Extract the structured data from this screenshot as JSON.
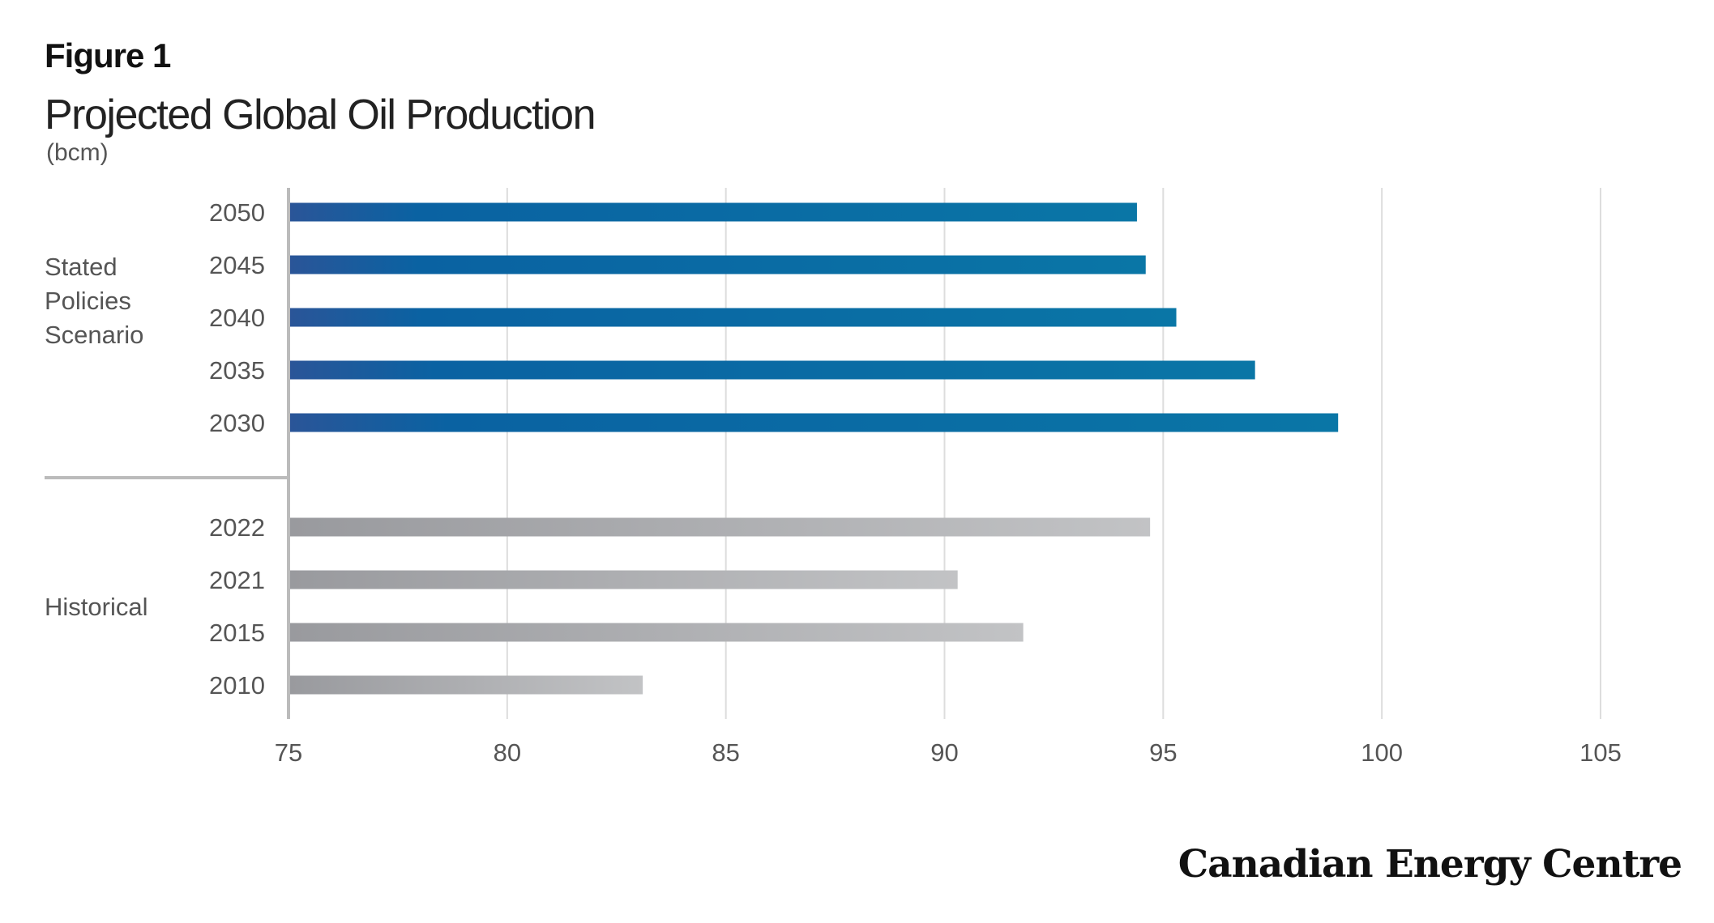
{
  "figure_label": "Figure 1",
  "brand": "Canadian Energy Centre",
  "colors": {
    "scenario_start": "#2a5598",
    "scenario_mid": "#0a62a2",
    "scenario_end": "#0a76a6",
    "historical_start": "#999a9e",
    "historical_end": "#c2c3c5",
    "gridline": "#dddddd",
    "axis": "#bbbbbb",
    "text": "#555555"
  },
  "chart_data": {
    "type": "bar",
    "orientation": "horizontal",
    "title": "Projected Global Oil Production",
    "unit": "(bcm)",
    "xlim": [
      75,
      105
    ],
    "x_ticks": [
      "75",
      "80",
      "85",
      "90",
      "95",
      "100",
      "105"
    ],
    "grid": "vertical",
    "groups": [
      {
        "label": "Stated Policies Scenario",
        "color_key": "scenario",
        "categories": [
          "2050",
          "2045",
          "2040",
          "2035",
          "2030"
        ],
        "values": [
          94.4,
          94.6,
          95.3,
          97.1,
          99.0
        ]
      },
      {
        "label": "Historical",
        "color_key": "historical",
        "categories": [
          "2022",
          "2021",
          "2015",
          "2010"
        ],
        "values": [
          94.7,
          90.3,
          91.8,
          83.1
        ]
      }
    ]
  }
}
